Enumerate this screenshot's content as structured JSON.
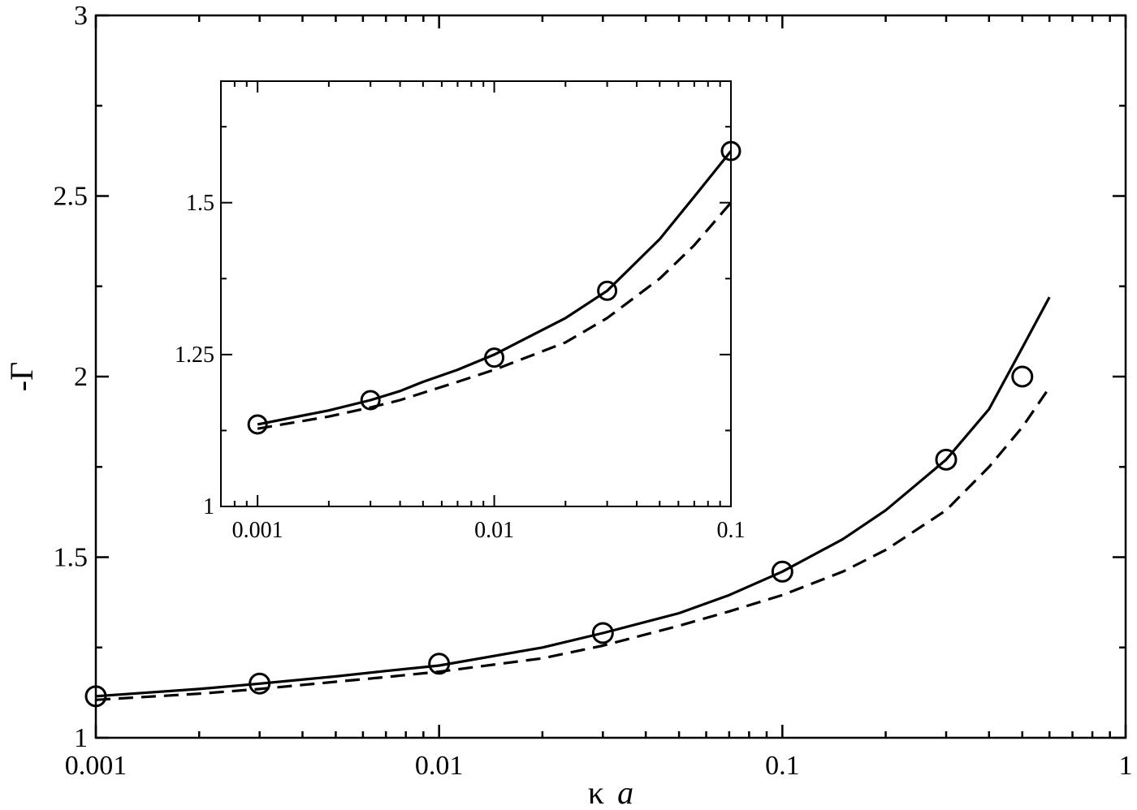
{
  "chart_data": [
    {
      "id": "main",
      "type": "line",
      "xscale": "log",
      "xlim": [
        0.001,
        1
      ],
      "ylim": [
        1,
        3
      ],
      "xlabel_symbol": "κ",
      "xlabel_italic": "a",
      "ylabel": "-Γ",
      "xticks": [
        {
          "v": 0.001,
          "label": "0.001"
        },
        {
          "v": 0.01,
          "label": "0.01"
        },
        {
          "v": 0.1,
          "label": "0.1"
        },
        {
          "v": 1,
          "label": "1"
        }
      ],
      "yticks": [
        {
          "v": 1,
          "label": "1"
        },
        {
          "v": 1.5,
          "label": "1.5"
        },
        {
          "v": 2,
          "label": "2"
        },
        {
          "v": 2.5,
          "label": "2.5"
        },
        {
          "v": 3,
          "label": "3"
        }
      ],
      "yminor": [
        1.25,
        1.75,
        2.25,
        2.75
      ],
      "grid": false,
      "series": [
        {
          "style": "solid",
          "x": [
            0.001,
            0.002,
            0.003,
            0.005,
            0.007,
            0.01,
            0.02,
            0.03,
            0.05,
            0.07,
            0.1,
            0.15,
            0.2,
            0.3,
            0.4,
            0.5,
            0.6
          ],
          "y": [
            1.115,
            1.135,
            1.15,
            1.17,
            1.185,
            1.2,
            1.25,
            1.29,
            1.345,
            1.395,
            1.46,
            1.55,
            1.63,
            1.77,
            1.91,
            2.08,
            2.22
          ]
        },
        {
          "style": "dashed",
          "x": [
            0.001,
            0.002,
            0.003,
            0.005,
            0.007,
            0.01,
            0.02,
            0.03,
            0.05,
            0.07,
            0.1,
            0.15,
            0.2,
            0.3,
            0.4,
            0.5,
            0.6
          ],
          "y": [
            1.105,
            1.122,
            1.135,
            1.155,
            1.168,
            1.183,
            1.22,
            1.255,
            1.31,
            1.35,
            1.395,
            1.46,
            1.52,
            1.63,
            1.75,
            1.86,
            1.97
          ]
        },
        {
          "style": "markers",
          "marker": "open-circle",
          "x": [
            0.001,
            0.003,
            0.01,
            0.03,
            0.1,
            0.3,
            0.5
          ],
          "y": [
            1.115,
            1.15,
            1.205,
            1.29,
            1.46,
            1.77,
            2.0
          ]
        }
      ]
    },
    {
      "id": "inset",
      "type": "line",
      "xscale": "log",
      "xlim": [
        0.0007,
        0.1
      ],
      "ylim": [
        1,
        1.7
      ],
      "xticks": [
        {
          "v": 0.001,
          "label": "0.001"
        },
        {
          "v": 0.01,
          "label": "0.01"
        },
        {
          "v": 0.1,
          "label": "0.1"
        }
      ],
      "yticks": [
        {
          "v": 1,
          "label": "1"
        },
        {
          "v": 1.25,
          "label": "1.25"
        },
        {
          "v": 1.5,
          "label": "1.5"
        }
      ],
      "yminor": [
        1.125,
        1.375,
        1.625
      ],
      "grid": false,
      "series": [
        {
          "style": "solid",
          "x": [
            0.001,
            0.002,
            0.003,
            0.004,
            0.005,
            0.007,
            0.01,
            0.02,
            0.03,
            0.05,
            0.07,
            0.1
          ],
          "y": [
            1.135,
            1.158,
            1.175,
            1.19,
            1.205,
            1.225,
            1.25,
            1.31,
            1.355,
            1.44,
            1.51,
            1.585
          ]
        },
        {
          "style": "dashed",
          "x": [
            0.001,
            0.002,
            0.003,
            0.004,
            0.005,
            0.007,
            0.01,
            0.02,
            0.03,
            0.05,
            0.07,
            0.1
          ],
          "y": [
            1.128,
            1.148,
            1.163,
            1.175,
            1.187,
            1.205,
            1.225,
            1.27,
            1.31,
            1.375,
            1.43,
            1.5
          ]
        },
        {
          "style": "markers",
          "marker": "open-circle",
          "x": [
            0.001,
            0.003,
            0.01,
            0.03,
            0.1
          ],
          "y": [
            1.135,
            1.175,
            1.245,
            1.355,
            1.585
          ]
        }
      ]
    }
  ]
}
